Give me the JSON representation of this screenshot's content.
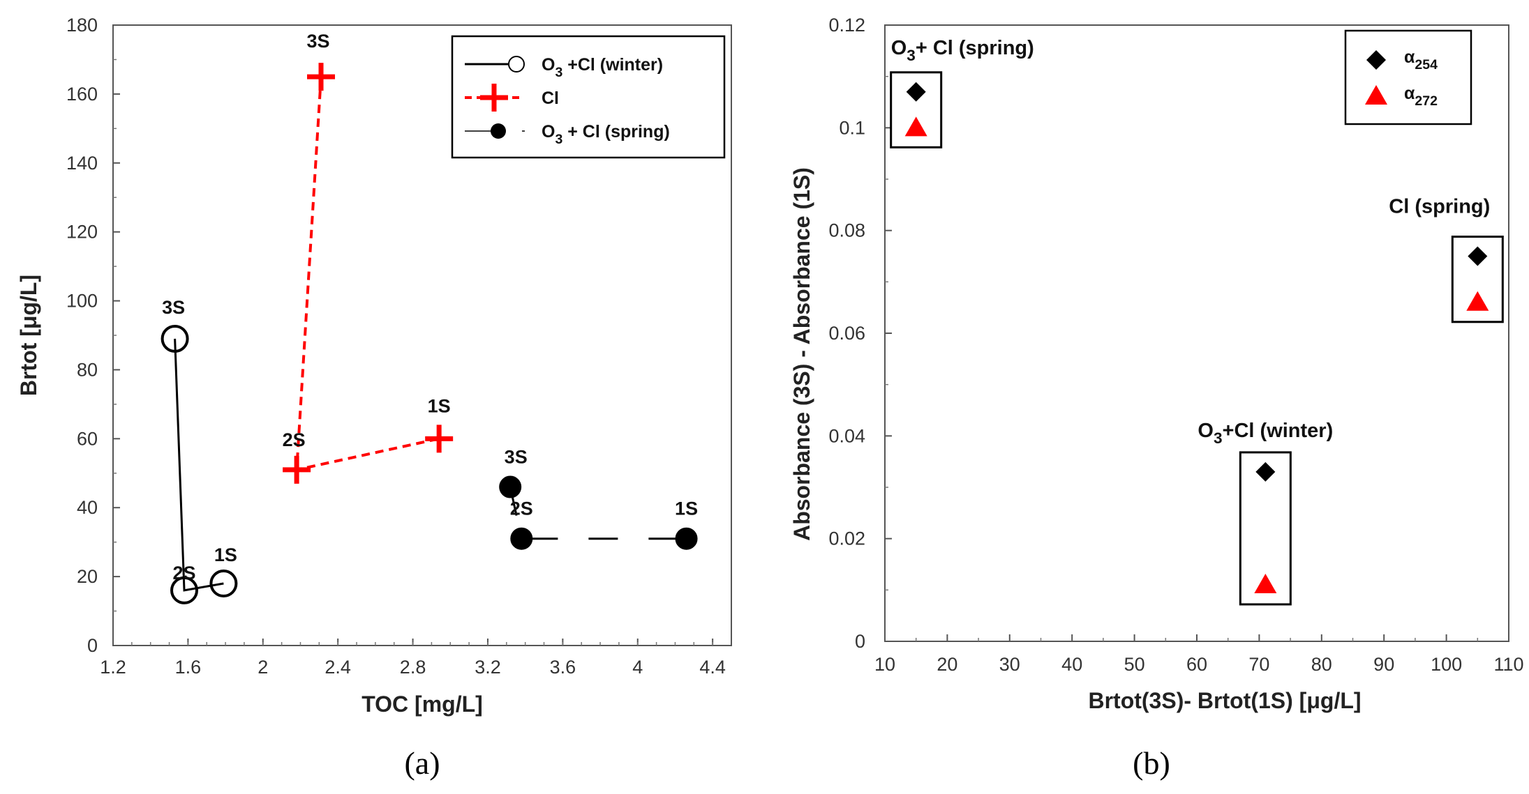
{
  "chart_data": [
    {
      "type": "line",
      "panel_label": "(a)",
      "xlabel": "TOC [mg/L]",
      "ylabel": "Brtot [μg/L]",
      "xlim": [
        1.2,
        4.5
      ],
      "ylim": [
        0,
        180
      ],
      "x_ticks": [
        "1.2",
        "1.6",
        "2",
        "2.4",
        "2.8",
        "3.2",
        "3.6",
        "4",
        "4.4"
      ],
      "y_ticks": [
        "0",
        "20",
        "40",
        "60",
        "80",
        "100",
        "120",
        "140",
        "160",
        "180"
      ],
      "legend": {
        "position": "top-right",
        "entries": [
          {
            "main": "O",
            "sub": "3",
            "rest": " +Cl (winter)"
          },
          {
            "main": "Cl",
            "sub": "",
            "rest": ""
          },
          {
            "main": "O",
            "sub": "3",
            "rest": " + Cl (spring)"
          }
        ]
      },
      "series": [
        {
          "marker": "open-circle",
          "line": "solid",
          "color": "#000000",
          "points": [
            {
              "x": 1.53,
              "y": 89,
              "label": "3S"
            },
            {
              "x": 1.58,
              "y": 16,
              "label": "2S"
            },
            {
              "x": 1.79,
              "y": 18,
              "label": "1S"
            }
          ]
        },
        {
          "marker": "plus",
          "line": "dashed",
          "color": "#ff0000",
          "points": [
            {
              "x": 2.31,
              "y": 165,
              "label": "3S"
            },
            {
              "x": 2.18,
              "y": 51,
              "label": "2S"
            },
            {
              "x": 2.94,
              "y": 60,
              "label": "1S"
            }
          ]
        },
        {
          "marker": "filled-circle",
          "line": "long-dash",
          "color": "#000000",
          "points": [
            {
              "x": 3.32,
              "y": 46,
              "label": "3S"
            },
            {
              "x": 3.38,
              "y": 31,
              "label": "2S"
            },
            {
              "x": 4.26,
              "y": 31,
              "label": "1S"
            }
          ]
        }
      ]
    },
    {
      "type": "scatter",
      "panel_label": "(b)",
      "xlabel": "Brtot(3S)- Brtot(1S) [μg/L]",
      "ylabel": "Absorbance (3S) - Absorbance (1S)",
      "xlim": [
        10,
        110
      ],
      "ylim": [
        0,
        0.12
      ],
      "x_ticks": [
        "10",
        "20",
        "30",
        "40",
        "50",
        "60",
        "70",
        "80",
        "90",
        "100",
        "110"
      ],
      "y_ticks": [
        "0",
        "0.02",
        "0.04",
        "0.06",
        "0.08",
        "0.1",
        "0.12"
      ],
      "legend": {
        "position": "top-right",
        "entries": [
          {
            "main": "α",
            "sub": "254"
          },
          {
            "main": "α",
            "sub": "272"
          }
        ]
      },
      "groups": [
        {
          "main": "O",
          "sub": "3",
          "rest": "+ Cl (spring)"
        },
        {
          "main": "Cl (spring)",
          "sub": "",
          "rest": ""
        },
        {
          "main": "O",
          "sub": "3",
          "rest": "+Cl (winter)"
        }
      ],
      "series": [
        {
          "marker": "diamond",
          "color": "#000000",
          "x": [
            15,
            105,
            71
          ],
          "y": [
            0.107,
            0.075,
            0.033
          ]
        },
        {
          "marker": "triangle",
          "color": "#ff0000",
          "x": [
            15,
            105,
            71
          ],
          "y": [
            0.1,
            0.066,
            0.011
          ]
        }
      ]
    }
  ]
}
